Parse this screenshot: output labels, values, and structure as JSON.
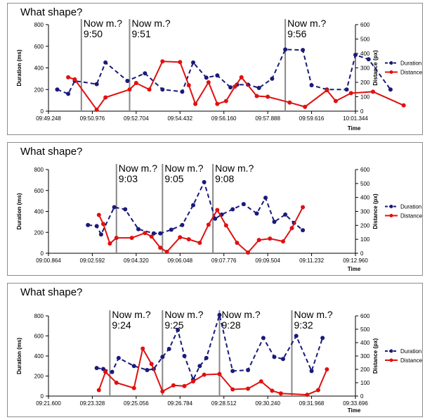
{
  "chart_data": [
    {
      "type": "line",
      "title": "What shape?",
      "ylabel": "Duration (ms)",
      "y2label": "Distance (px)",
      "xlabel": "Time",
      "ylim": [
        0,
        800
      ],
      "yticks": [
        0,
        200,
        400,
        600,
        800
      ],
      "y2lim": [
        0,
        600
      ],
      "y2ticks": [
        0,
        100,
        200,
        300,
        400,
        500,
        600
      ],
      "xticks": [
        "09:49.248",
        "09:50.976",
        "09:52.704",
        "09:54.432",
        "09:56.160",
        "09:57.888",
        "09:59.616",
        "10:01.344"
      ],
      "legend_position": "right",
      "markers": [
        {
          "label": "Now m.?",
          "time": "9:50",
          "x": 0.75
        },
        {
          "label": "Now m.?",
          "time": "9:51",
          "x": 1.85
        },
        {
          "label": "Now m.?",
          "time": "9:56",
          "x": 5.4
        }
      ],
      "series": [
        {
          "name": "Duration",
          "axis": "left",
          "color": "#1a1a7a",
          "dashed": true,
          "x": [
            0.2,
            0.45,
            0.6,
            1.1,
            1.3,
            1.8,
            2.2,
            2.6,
            3.05,
            3.3,
            3.6,
            3.85,
            4.15,
            4.3,
            4.55,
            4.8,
            5.1,
            5.4,
            5.8,
            6.0,
            6.35,
            6.8,
            7.0,
            7.3,
            7.8
          ],
          "y": [
            200,
            160,
            280,
            250,
            450,
            280,
            350,
            200,
            180,
            450,
            310,
            330,
            220,
            245,
            245,
            215,
            300,
            570,
            565,
            240,
            200,
            200,
            520,
            480,
            200
          ]
        },
        {
          "name": "Distance",
          "axis": "right",
          "color": "#e01010",
          "dashed": false,
          "x": [
            0.45,
            0.6,
            1.1,
            1.3,
            1.85,
            2.0,
            2.3,
            2.6,
            3.0,
            3.2,
            3.35,
            3.65,
            3.85,
            4.05,
            4.25,
            4.4,
            4.75,
            5.0,
            5.5,
            5.85,
            6.35,
            6.55,
            6.9,
            7.4,
            8.1
          ],
          "y": [
            235,
            220,
            10,
            95,
            150,
            195,
            150,
            345,
            340,
            180,
            50,
            200,
            50,
            70,
            170,
            235,
            105,
            100,
            60,
            30,
            145,
            70,
            125,
            135,
            40
          ]
        }
      ]
    },
    {
      "type": "line",
      "title": "What shape?",
      "ylabel": "Duration (ms)",
      "y2label": "Distance (px)",
      "xlabel": "Time",
      "ylim": [
        0,
        800
      ],
      "yticks": [
        0,
        200,
        400,
        600,
        800
      ],
      "y2lim": [
        0,
        600
      ],
      "y2ticks": [
        0,
        100,
        200,
        300,
        400,
        500,
        600
      ],
      "xticks": [
        "09:00.864",
        "09:02.592",
        "09:04.320",
        "09:06.048",
        "09:07.776",
        "09:09.504",
        "09:11.232",
        "09:12.960"
      ],
      "legend_position": "right",
      "markers": [
        {
          "label": "Now m.?",
          "time": "9:03",
          "x": 1.55
        },
        {
          "label": "Now m.?",
          "time": "9:05",
          "x": 2.6
        },
        {
          "label": "Now m.?",
          "time": "9:08",
          "x": 3.75
        }
      ],
      "series": [
        {
          "name": "Duration",
          "axis": "left",
          "color": "#1a1a7a",
          "dashed": true,
          "x": [
            0.9,
            1.1,
            1.2,
            1.5,
            1.75,
            2.05,
            2.4,
            2.55,
            2.8,
            3.05,
            3.3,
            3.55,
            3.8,
            3.95,
            4.2,
            4.45,
            4.75,
            4.95,
            5.15,
            5.4,
            5.6,
            5.8
          ],
          "y": [
            270,
            260,
            180,
            440,
            420,
            230,
            190,
            190,
            225,
            270,
            460,
            680,
            330,
            370,
            420,
            470,
            380,
            530,
            300,
            370,
            290,
            220
          ]
        },
        {
          "name": "Distance",
          "axis": "right",
          "color": "#e01010",
          "dashed": false,
          "x": [
            1.15,
            1.25,
            1.4,
            1.55,
            1.9,
            2.2,
            2.35,
            2.55,
            2.7,
            3.0,
            3.2,
            3.45,
            3.65,
            3.85,
            4.05,
            4.3,
            4.55,
            4.8,
            5.05,
            5.35,
            5.55,
            5.8
          ],
          "y": [
            275,
            210,
            70,
            110,
            110,
            145,
            120,
            40,
            10,
            115,
            100,
            75,
            205,
            310,
            200,
            75,
            5,
            95,
            105,
            85,
            180,
            330
          ]
        }
      ]
    },
    {
      "type": "line",
      "title": "What shape?",
      "ylabel": "Duration (ms)",
      "y2label": "Distance (px)",
      "xlabel": "Time",
      "ylim": [
        0,
        800
      ],
      "yticks": [
        0,
        200,
        400,
        600,
        800
      ],
      "y2lim": [
        0,
        600
      ],
      "y2ticks": [
        0,
        100,
        200,
        300,
        400,
        500,
        600
      ],
      "xticks": [
        "09:21.600",
        "09:23.328",
        "09:25.056",
        "09:26.784",
        "09:28.512",
        "09:30.240",
        "09:31.968",
        "09:33.696"
      ],
      "legend_position": "right",
      "markers": [
        {
          "label": "Now m.?",
          "time": "9:24",
          "x": 1.4
        },
        {
          "label": "Now m.?",
          "time": "9:25",
          "x": 2.6
        },
        {
          "label": "Now m.?",
          "time": "9:28",
          "x": 3.9
        },
        {
          "label": "Now m.?",
          "time": "9:32",
          "x": 5.55
        }
      ],
      "series": [
        {
          "name": "Duration",
          "axis": "left",
          "color": "#1a1a7a",
          "dashed": true,
          "x": [
            1.1,
            1.25,
            1.45,
            1.6,
            1.95,
            2.25,
            2.4,
            2.6,
            2.75,
            2.95,
            3.1,
            3.3,
            3.45,
            3.6,
            3.9,
            4.2,
            4.55,
            4.9,
            5.15,
            5.35,
            5.65,
            6.0,
            6.25
          ],
          "y": [
            280,
            270,
            240,
            380,
            300,
            260,
            270,
            390,
            470,
            660,
            400,
            165,
            300,
            380,
            810,
            250,
            260,
            580,
            390,
            370,
            600,
            250,
            580
          ]
        },
        {
          "name": "Distance",
          "axis": "right",
          "color": "#e01010",
          "dashed": false,
          "x": [
            1.15,
            1.3,
            1.55,
            1.95,
            2.15,
            2.35,
            2.6,
            2.85,
            3.1,
            3.3,
            3.55,
            3.9,
            4.2,
            4.55,
            4.85,
            5.1,
            5.3,
            5.9,
            6.15,
            6.35
          ],
          "y": [
            45,
            180,
            100,
            60,
            355,
            240,
            35,
            80,
            75,
            110,
            160,
            165,
            50,
            55,
            110,
            40,
            20,
            10,
            45,
            200
          ]
        }
      ]
    }
  ]
}
